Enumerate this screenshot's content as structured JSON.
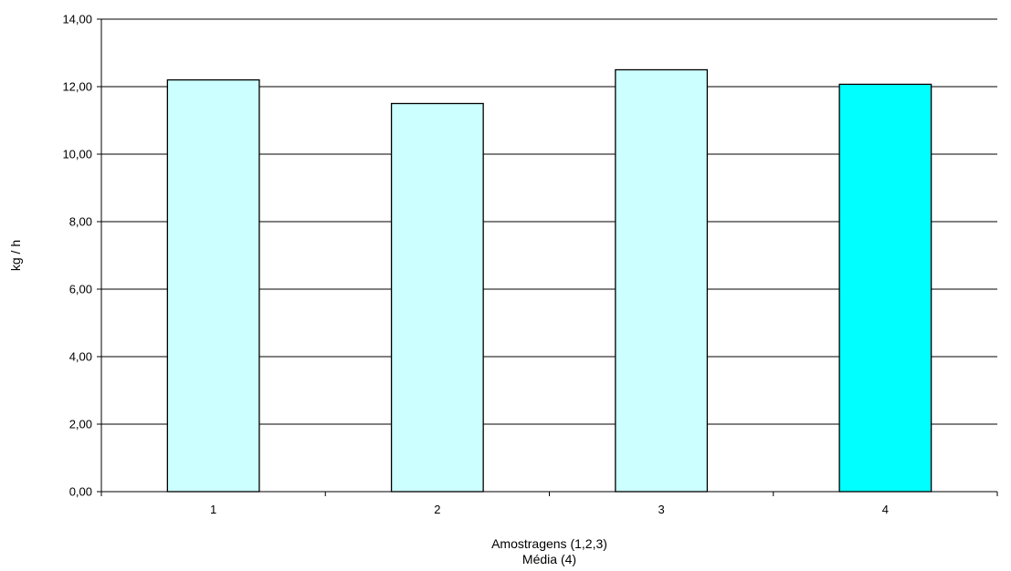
{
  "chart_data": {
    "type": "bar",
    "categories": [
      "1",
      "2",
      "3",
      "4"
    ],
    "values": [
      12.2,
      11.5,
      12.5,
      12.07
    ],
    "bar_colors": [
      "#ccffff",
      "#ccffff",
      "#ccffff",
      "#00ffff"
    ],
    "title": "",
    "xlabel_lines": [
      "Amostragens (1,2,3)",
      "Média (4)"
    ],
    "ylabel": "kg / h",
    "ylim": [
      0,
      14
    ],
    "yticks": [
      "0,00",
      "2,00",
      "4,00",
      "6,00",
      "8,00",
      "10,00",
      "12,00",
      "14,00"
    ],
    "grid": true,
    "legend": "none"
  }
}
